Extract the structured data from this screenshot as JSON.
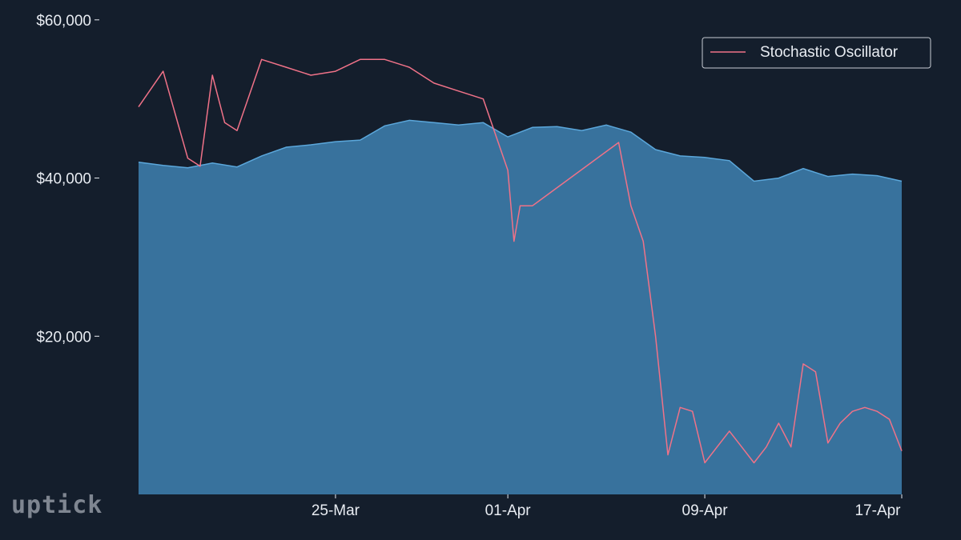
{
  "chart_data": {
    "type": "area",
    "title": "",
    "xlabel": "",
    "ylabel": "",
    "x_tick_labels": [
      "25-Mar",
      "01-Apr",
      "09-Apr",
      "17-Apr"
    ],
    "y_tick_labels": [
      "$20,000",
      "$40,000",
      "$60,000"
    ],
    "y_ticks": [
      20000,
      40000,
      60000
    ],
    "ylim": [
      0,
      61500
    ],
    "xlim": [
      "2022-03-17",
      "2022-04-17"
    ],
    "grid": false,
    "legend_position": "top-right",
    "series": [
      {
        "kind": "area",
        "color": "#3a7fb0",
        "x": [
          "2022-03-17",
          "2022-03-18",
          "2022-03-19",
          "2022-03-20",
          "2022-03-21",
          "2022-03-22",
          "2022-03-23",
          "2022-03-24",
          "2022-03-25",
          "2022-03-26",
          "2022-03-27",
          "2022-03-28",
          "2022-03-29",
          "2022-03-30",
          "2022-03-31",
          "2022-04-01",
          "2022-04-02",
          "2022-04-03",
          "2022-04-04",
          "2022-04-05",
          "2022-04-06",
          "2022-04-07",
          "2022-04-08",
          "2022-04-09",
          "2022-04-10",
          "2022-04-11",
          "2022-04-12",
          "2022-04-13",
          "2022-04-14",
          "2022-04-15",
          "2022-04-16",
          "2022-04-17"
        ],
        "values": [
          42000,
          41600,
          41300,
          41900,
          41400,
          42800,
          43900,
          44200,
          44600,
          44800,
          46600,
          47300,
          47000,
          46700,
          47000,
          45200,
          46400,
          46500,
          46000,
          46700,
          45800,
          43600,
          42800,
          42600,
          42200,
          39600,
          40000,
          41200,
          40200,
          40500,
          40300,
          39600
        ]
      },
      {
        "name": "Stochastic Oscillator",
        "kind": "line",
        "color": "#f07288",
        "x": [
          "2022-03-17",
          "2022-03-18",
          "2022-03-18T12:00",
          "2022-03-19",
          "2022-03-19T12:00",
          "2022-03-20",
          "2022-03-20T12:00",
          "2022-03-21",
          "2022-03-22",
          "2022-03-23",
          "2022-03-24",
          "2022-03-25",
          "2022-03-26",
          "2022-03-27",
          "2022-03-28",
          "2022-03-29",
          "2022-03-30",
          "2022-03-31",
          "2022-04-01",
          "2022-04-01T06:00",
          "2022-04-01T12:00",
          "2022-04-02",
          "2022-04-05T12:00",
          "2022-04-06",
          "2022-04-06T12:00",
          "2022-04-07",
          "2022-04-07T12:00",
          "2022-04-08",
          "2022-04-08T12:00",
          "2022-04-09",
          "2022-04-09T12:00",
          "2022-04-10",
          "2022-04-10T12:00",
          "2022-04-11",
          "2022-04-11T12:00",
          "2022-04-12",
          "2022-04-12T12:00",
          "2022-04-13",
          "2022-04-13T12:00",
          "2022-04-14",
          "2022-04-14T12:00",
          "2022-04-15",
          "2022-04-15T12:00",
          "2022-04-16",
          "2022-04-16T12:00",
          "2022-04-17"
        ],
        "values": [
          49000,
          53500,
          48000,
          42500,
          41500,
          53000,
          47000,
          46000,
          55000,
          54000,
          53000,
          53500,
          55000,
          55000,
          54000,
          52000,
          51000,
          50000,
          41000,
          32000,
          36500,
          36500,
          44500,
          36500,
          32000,
          20000,
          5000,
          11000,
          10500,
          4000,
          6000,
          8000,
          6000,
          4000,
          6000,
          9000,
          6000,
          16500,
          15500,
          6500,
          9000,
          10500,
          11000,
          10500,
          9500,
          5500
        ]
      }
    ]
  },
  "legend": {
    "label": "Stochastic Oscillator"
  },
  "logo": {
    "text": "uptick"
  }
}
